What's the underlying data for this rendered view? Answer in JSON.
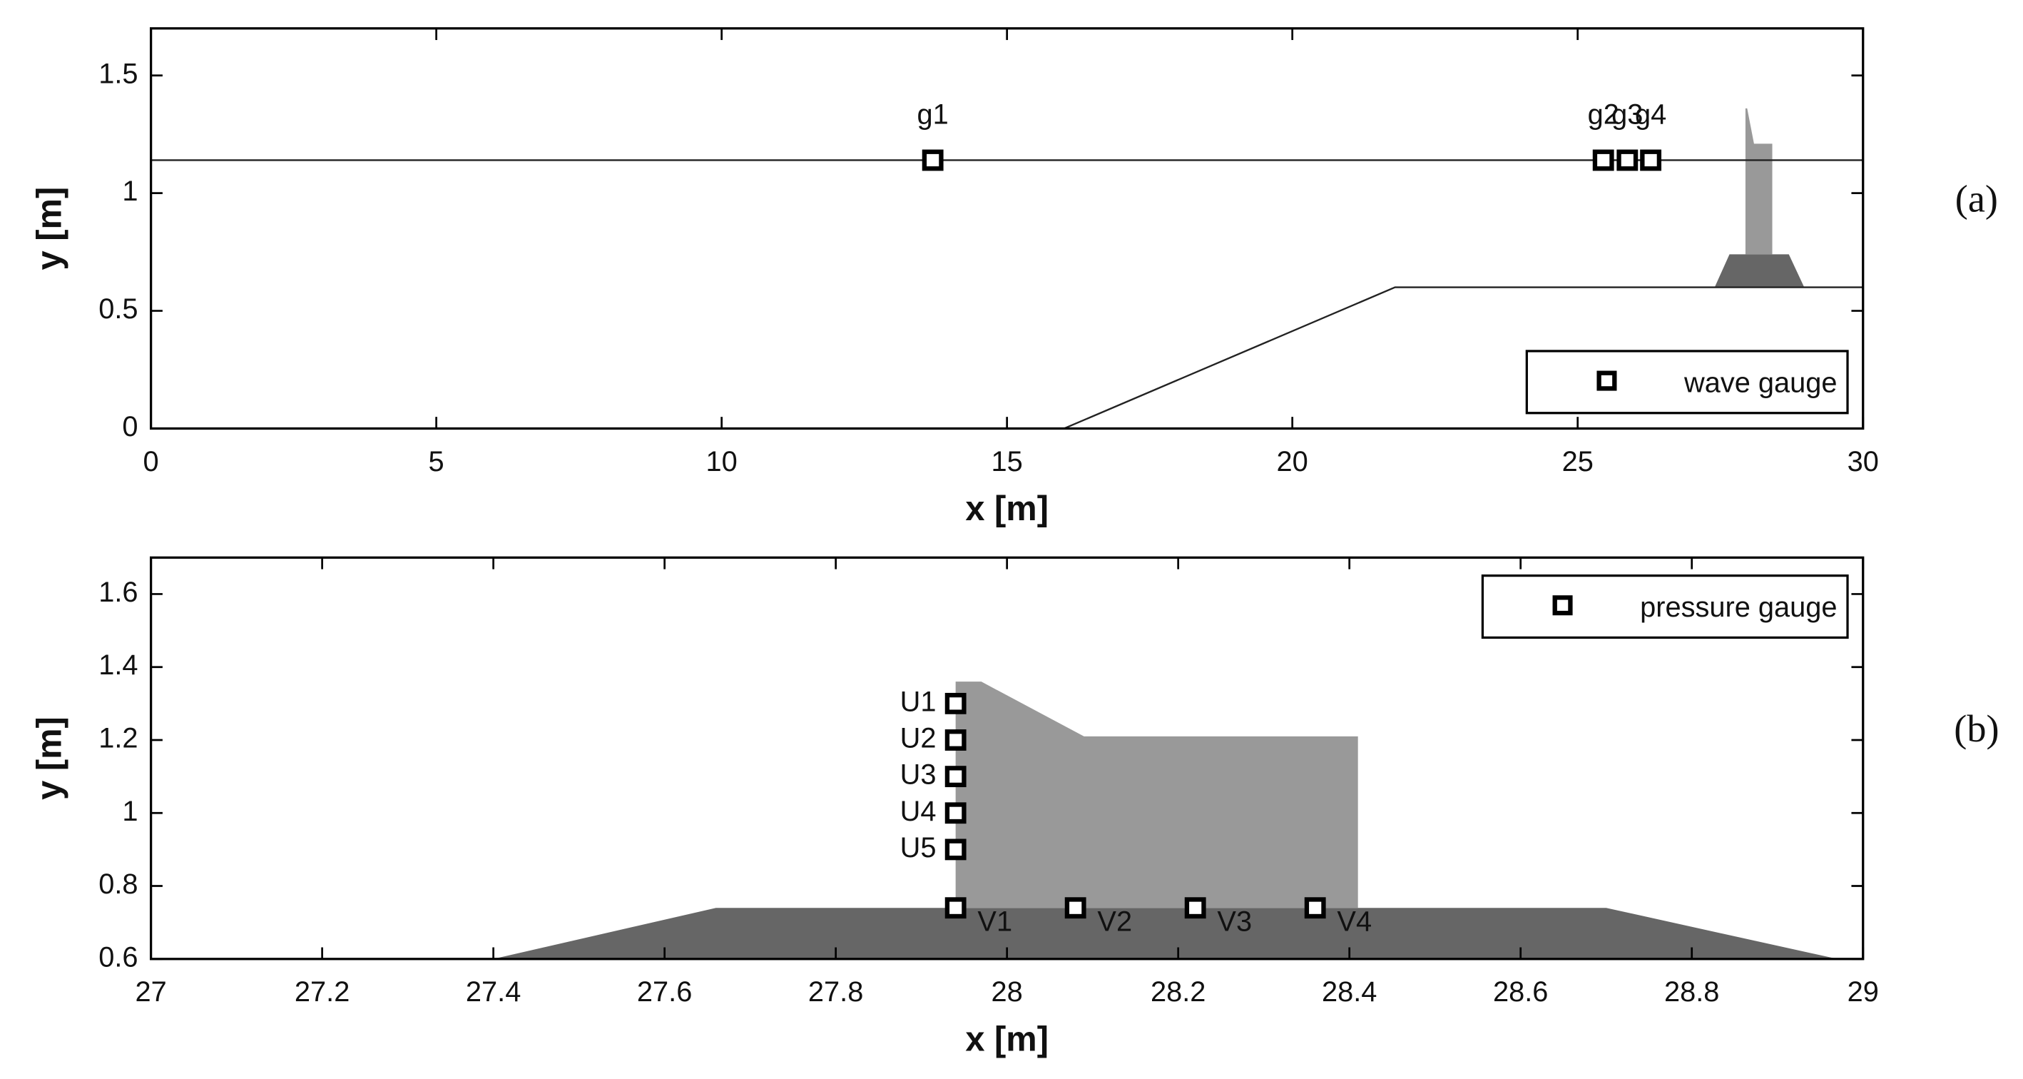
{
  "chart_data": [
    {
      "type": "scatter",
      "panel_label": "(a)",
      "xlabel": "x [m]",
      "ylabel": "y [m]",
      "xlim": [
        0,
        30
      ],
      "xticks": [
        0,
        5,
        10,
        15,
        20,
        25,
        30
      ],
      "ylim": [
        0,
        1.7
      ],
      "yticks": [
        0,
        0.5,
        1,
        1.5
      ],
      "water_level": 1.14,
      "bathymetry": {
        "x": [
          16,
          21.8,
          30
        ],
        "y": [
          0,
          0.6,
          0.6
        ]
      },
      "mound": {
        "x": [
          27.4,
          27.66,
          28.7,
          28.97
        ],
        "y": [
          0.6,
          0.74,
          0.74,
          0.6
        ],
        "color": "#666666"
      },
      "caisson": {
        "x": [
          27.94,
          27.94,
          27.97,
          28.09,
          28.41,
          28.41
        ],
        "y": [
          0.74,
          1.36,
          1.36,
          1.21,
          1.21,
          0.74
        ],
        "color": "#999999"
      },
      "legend": {
        "label": "wave gauge",
        "position": "lower right"
      },
      "gauges": [
        {
          "label": "g1",
          "x": 13.7,
          "y": 1.14
        },
        {
          "label": "g2",
          "x": 25.45,
          "y": 1.14
        },
        {
          "label": "g3",
          "x": 25.87,
          "y": 1.14
        },
        {
          "label": "g4",
          "x": 26.28,
          "y": 1.14
        }
      ]
    },
    {
      "type": "scatter",
      "panel_label": "(b)",
      "xlabel": "x [m]",
      "ylabel": "y [m]",
      "xlim": [
        27,
        29
      ],
      "xticks": [
        27,
        27.2,
        27.4,
        27.6,
        27.8,
        28,
        28.2,
        28.4,
        28.6,
        28.8,
        29
      ],
      "ylim": [
        0.6,
        1.7
      ],
      "yticks": [
        0.6,
        0.8,
        1,
        1.2,
        1.4,
        1.6
      ],
      "mound": {
        "x": [
          27.4,
          27.66,
          28.7,
          28.97
        ],
        "y": [
          0.6,
          0.74,
          0.74,
          0.6
        ],
        "color": "#666666"
      },
      "caisson": {
        "x": [
          27.94,
          27.94,
          27.97,
          28.09,
          28.41,
          28.41
        ],
        "y": [
          0.74,
          1.36,
          1.36,
          1.21,
          1.21,
          0.74
        ],
        "color": "#999999"
      },
      "legend": {
        "label": "pressure gauge",
        "position": "upper right"
      },
      "gauges": [
        {
          "label": "U1",
          "x": 27.94,
          "y": 1.3
        },
        {
          "label": "U2",
          "x": 27.94,
          "y": 1.2
        },
        {
          "label": "U3",
          "x": 27.94,
          "y": 1.1
        },
        {
          "label": "U4",
          "x": 27.94,
          "y": 1.0
        },
        {
          "label": "U5",
          "x": 27.94,
          "y": 0.9
        },
        {
          "label": "V1",
          "x": 27.94,
          "y": 0.74
        },
        {
          "label": "V2",
          "x": 28.08,
          "y": 0.74
        },
        {
          "label": "V3",
          "x": 28.22,
          "y": 0.74
        },
        {
          "label": "V4",
          "x": 28.36,
          "y": 0.74
        }
      ]
    }
  ]
}
